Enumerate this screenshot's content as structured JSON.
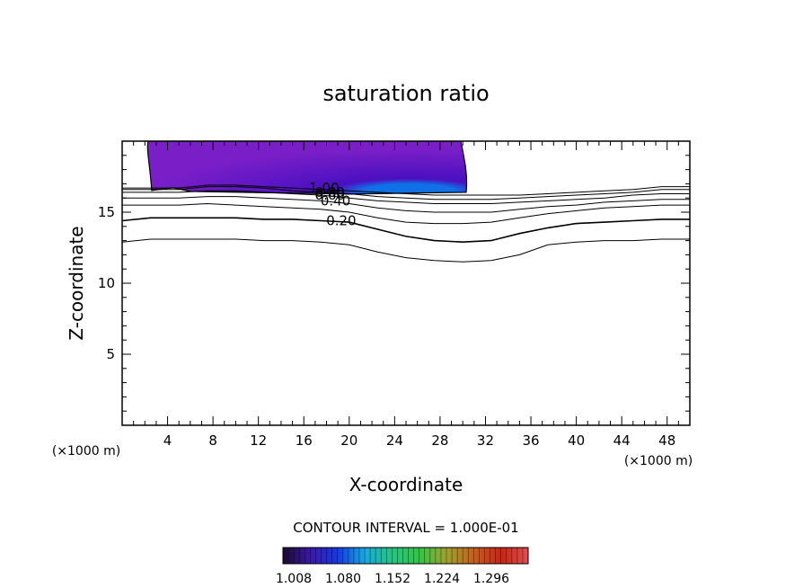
{
  "chart_data": {
    "type": "contour",
    "title": "saturation ratio",
    "xlabel": "X-coordinate",
    "ylabel": "Z-coordinate",
    "x_unit_left": "(×1000 m)",
    "x_unit_right": "(×1000 m)",
    "xlim": [
      0,
      50
    ],
    "ylim": [
      0,
      20
    ],
    "x_ticks": [
      4,
      8,
      12,
      16,
      20,
      24,
      28,
      32,
      36,
      40,
      44,
      48
    ],
    "y_ticks": [
      5,
      10,
      15
    ],
    "contour_interval_text": "CONTOUR INTERVAL = 1.000E-01",
    "contour_levels": [
      {
        "label": "1.00",
        "z": [
          16.7,
          16.7,
          16.7,
          16.9,
          16.9,
          16.8,
          16.7,
          16.6,
          16.5,
          16.4,
          16.3,
          16.2,
          16.2,
          16.2,
          16.2,
          16.3,
          16.4,
          16.5,
          16.6,
          16.8,
          16.8
        ]
      },
      {
        "label": "0.80",
        "z": [
          16.6,
          16.6,
          16.6,
          16.8,
          16.8,
          16.7,
          16.5,
          16.4,
          16.3,
          16.1,
          16.0,
          15.9,
          15.9,
          15.9,
          16.0,
          16.1,
          16.2,
          16.3,
          16.4,
          16.6,
          16.6
        ]
      },
      {
        "label": "0.60",
        "z": [
          16.4,
          16.4,
          16.4,
          16.5,
          16.5,
          16.4,
          16.3,
          16.2,
          16.0,
          15.8,
          15.7,
          15.6,
          15.6,
          15.6,
          15.7,
          15.8,
          15.9,
          16.0,
          16.2,
          16.3,
          16.3
        ]
      },
      {
        "label": "0.40",
        "z": [
          16.0,
          16.0,
          16.0,
          16.1,
          16.1,
          16.0,
          15.9,
          15.8,
          15.6,
          15.3,
          15.1,
          15.0,
          15.0,
          15.0,
          15.2,
          15.4,
          15.5,
          15.7,
          15.8,
          15.9,
          15.9
        ]
      },
      {
        "label": "",
        "z": [
          15.5,
          15.5,
          15.5,
          15.6,
          15.5,
          15.4,
          15.3,
          15.2,
          15.0,
          14.6,
          14.3,
          14.2,
          14.2,
          14.3,
          14.6,
          14.9,
          15.1,
          15.3,
          15.4,
          15.5,
          15.5
        ]
      },
      {
        "label": "0.20",
        "z": [
          14.4,
          14.6,
          14.6,
          14.6,
          14.6,
          14.5,
          14.5,
          14.4,
          14.3,
          13.8,
          13.3,
          13.0,
          12.9,
          13.0,
          13.5,
          13.9,
          14.2,
          14.3,
          14.4,
          14.5,
          14.5
        ]
      },
      {
        "label": "",
        "z": [
          12.9,
          13.1,
          13.1,
          13.1,
          13.1,
          13.0,
          13.0,
          12.9,
          12.7,
          12.2,
          11.8,
          11.6,
          11.5,
          11.6,
          12.0,
          12.7,
          12.9,
          13.0,
          13.0,
          13.1,
          13.1
        ]
      }
    ],
    "contour_x": [
      0,
      2.5,
      5,
      7.5,
      10,
      12.5,
      15,
      17.5,
      20,
      22.5,
      25,
      27.5,
      30,
      32.5,
      35,
      37.5,
      40,
      42.5,
      45,
      47.5,
      50
    ],
    "shaded_region": {
      "x_range": [
        2.6,
        30.3
      ],
      "z_range": [
        16.4,
        20
      ]
    },
    "colorbar": {
      "tick_labels": [
        "1.008",
        "1.080",
        "1.152",
        "1.224",
        "1.296"
      ],
      "colors": [
        "#1a0a30",
        "#3a1ba0",
        "#1838d8",
        "#18a8e0",
        "#20c880",
        "#30c840",
        "#a0a030",
        "#c06020",
        "#c02818",
        "#e05050"
      ]
    },
    "fill_colors": {
      "outer": "#7a1fc8",
      "inner": "#4a10c0",
      "core": "#1070e8"
    }
  }
}
